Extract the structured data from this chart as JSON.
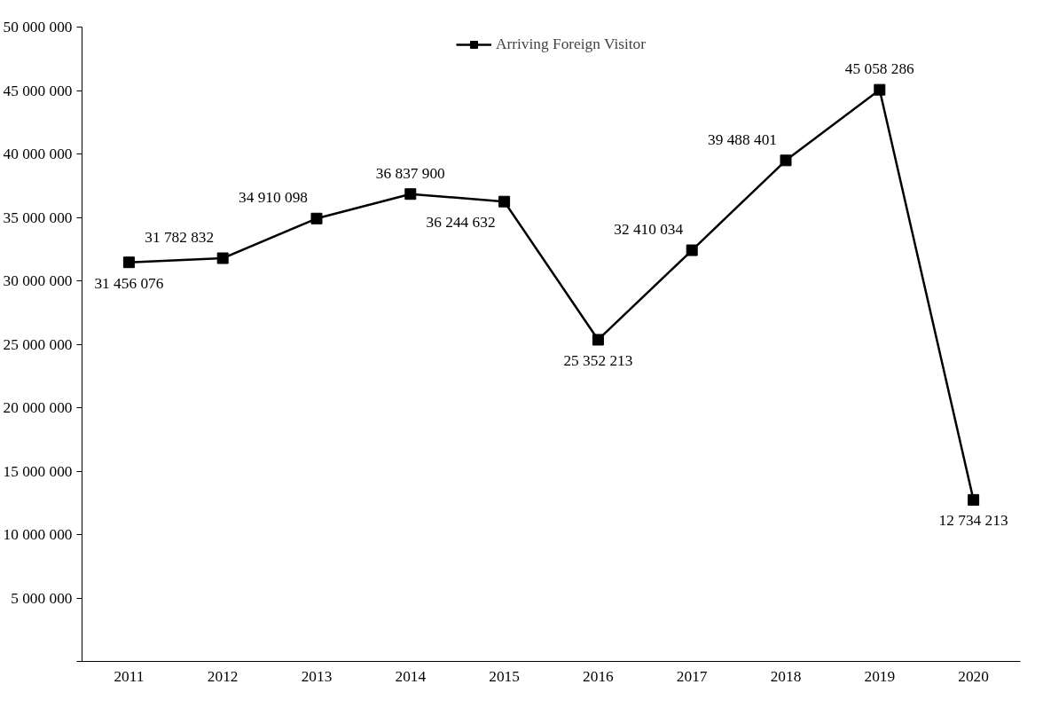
{
  "chart_data": {
    "type": "line",
    "categories": [
      "2011",
      "2012",
      "2013",
      "2014",
      "2015",
      "2016",
      "2017",
      "2018",
      "2019",
      "2020"
    ],
    "series": [
      {
        "name": "Arriving Foreign Visitor",
        "color": "#000000",
        "values": [
          31456076,
          31782832,
          34910098,
          36837900,
          36244632,
          25352213,
          32410034,
          39488401,
          45058286,
          12734213
        ],
        "value_labels": [
          "31 456 076",
          "31 782 832",
          "34 910 098",
          "36 837 900",
          "36 244 632",
          "25 352 213",
          "32 410 034",
          "39 488 401",
          "45 058 286",
          "12 734 213"
        ]
      }
    ],
    "ylim": [
      0,
      50000000
    ],
    "yticks": [
      {
        "value": 0,
        "label": null
      },
      {
        "value": 5000000,
        "label": "5 000 000"
      },
      {
        "value": 10000000,
        "label": "10 000 000"
      },
      {
        "value": 15000000,
        "label": "15 000 000"
      },
      {
        "value": 20000000,
        "label": "20 000 000"
      },
      {
        "value": 25000000,
        "label": "25 000 000"
      },
      {
        "value": 30000000,
        "label": "30 000 000"
      },
      {
        "value": 35000000,
        "label": "35 000 000"
      },
      {
        "value": 40000000,
        "label": "40 000 000"
      },
      {
        "value": 45000000,
        "label": "45 000 000"
      },
      {
        "value": 50000000,
        "label": "50 000 000"
      }
    ],
    "grid": false,
    "legend": "top",
    "marker": "square",
    "line_style": "solid"
  }
}
